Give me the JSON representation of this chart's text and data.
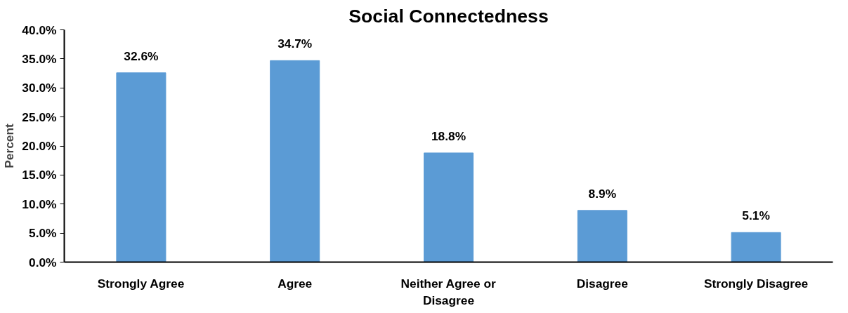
{
  "chart_data": {
    "type": "bar",
    "title": "Social Connectedness",
    "ylabel": "Percent",
    "categories": [
      "Strongly Agree",
      "Agree",
      "Neither Agree or Disagree",
      "Disagree",
      "Strongly Disagree"
    ],
    "values": [
      32.6,
      34.7,
      18.8,
      8.9,
      5.1
    ],
    "value_labels": [
      "32.6%",
      "34.7%",
      "18.8%",
      "8.9%",
      "5.1%"
    ],
    "color": "#5b9bd5",
    "ylim": [
      0,
      40
    ],
    "yticks": [
      {
        "value": 0,
        "label": "0.0%"
      },
      {
        "value": 5,
        "label": "5.0%"
      },
      {
        "value": 10,
        "label": "10.0%"
      },
      {
        "value": 15,
        "label": "15.0%"
      },
      {
        "value": 20,
        "label": "20.0%"
      },
      {
        "value": 25,
        "label": "25.0%"
      },
      {
        "value": 30,
        "label": "30.0%"
      },
      {
        "value": 35,
        "label": "35.0%"
      },
      {
        "value": 40,
        "label": "40.0%"
      }
    ],
    "grid": false
  }
}
